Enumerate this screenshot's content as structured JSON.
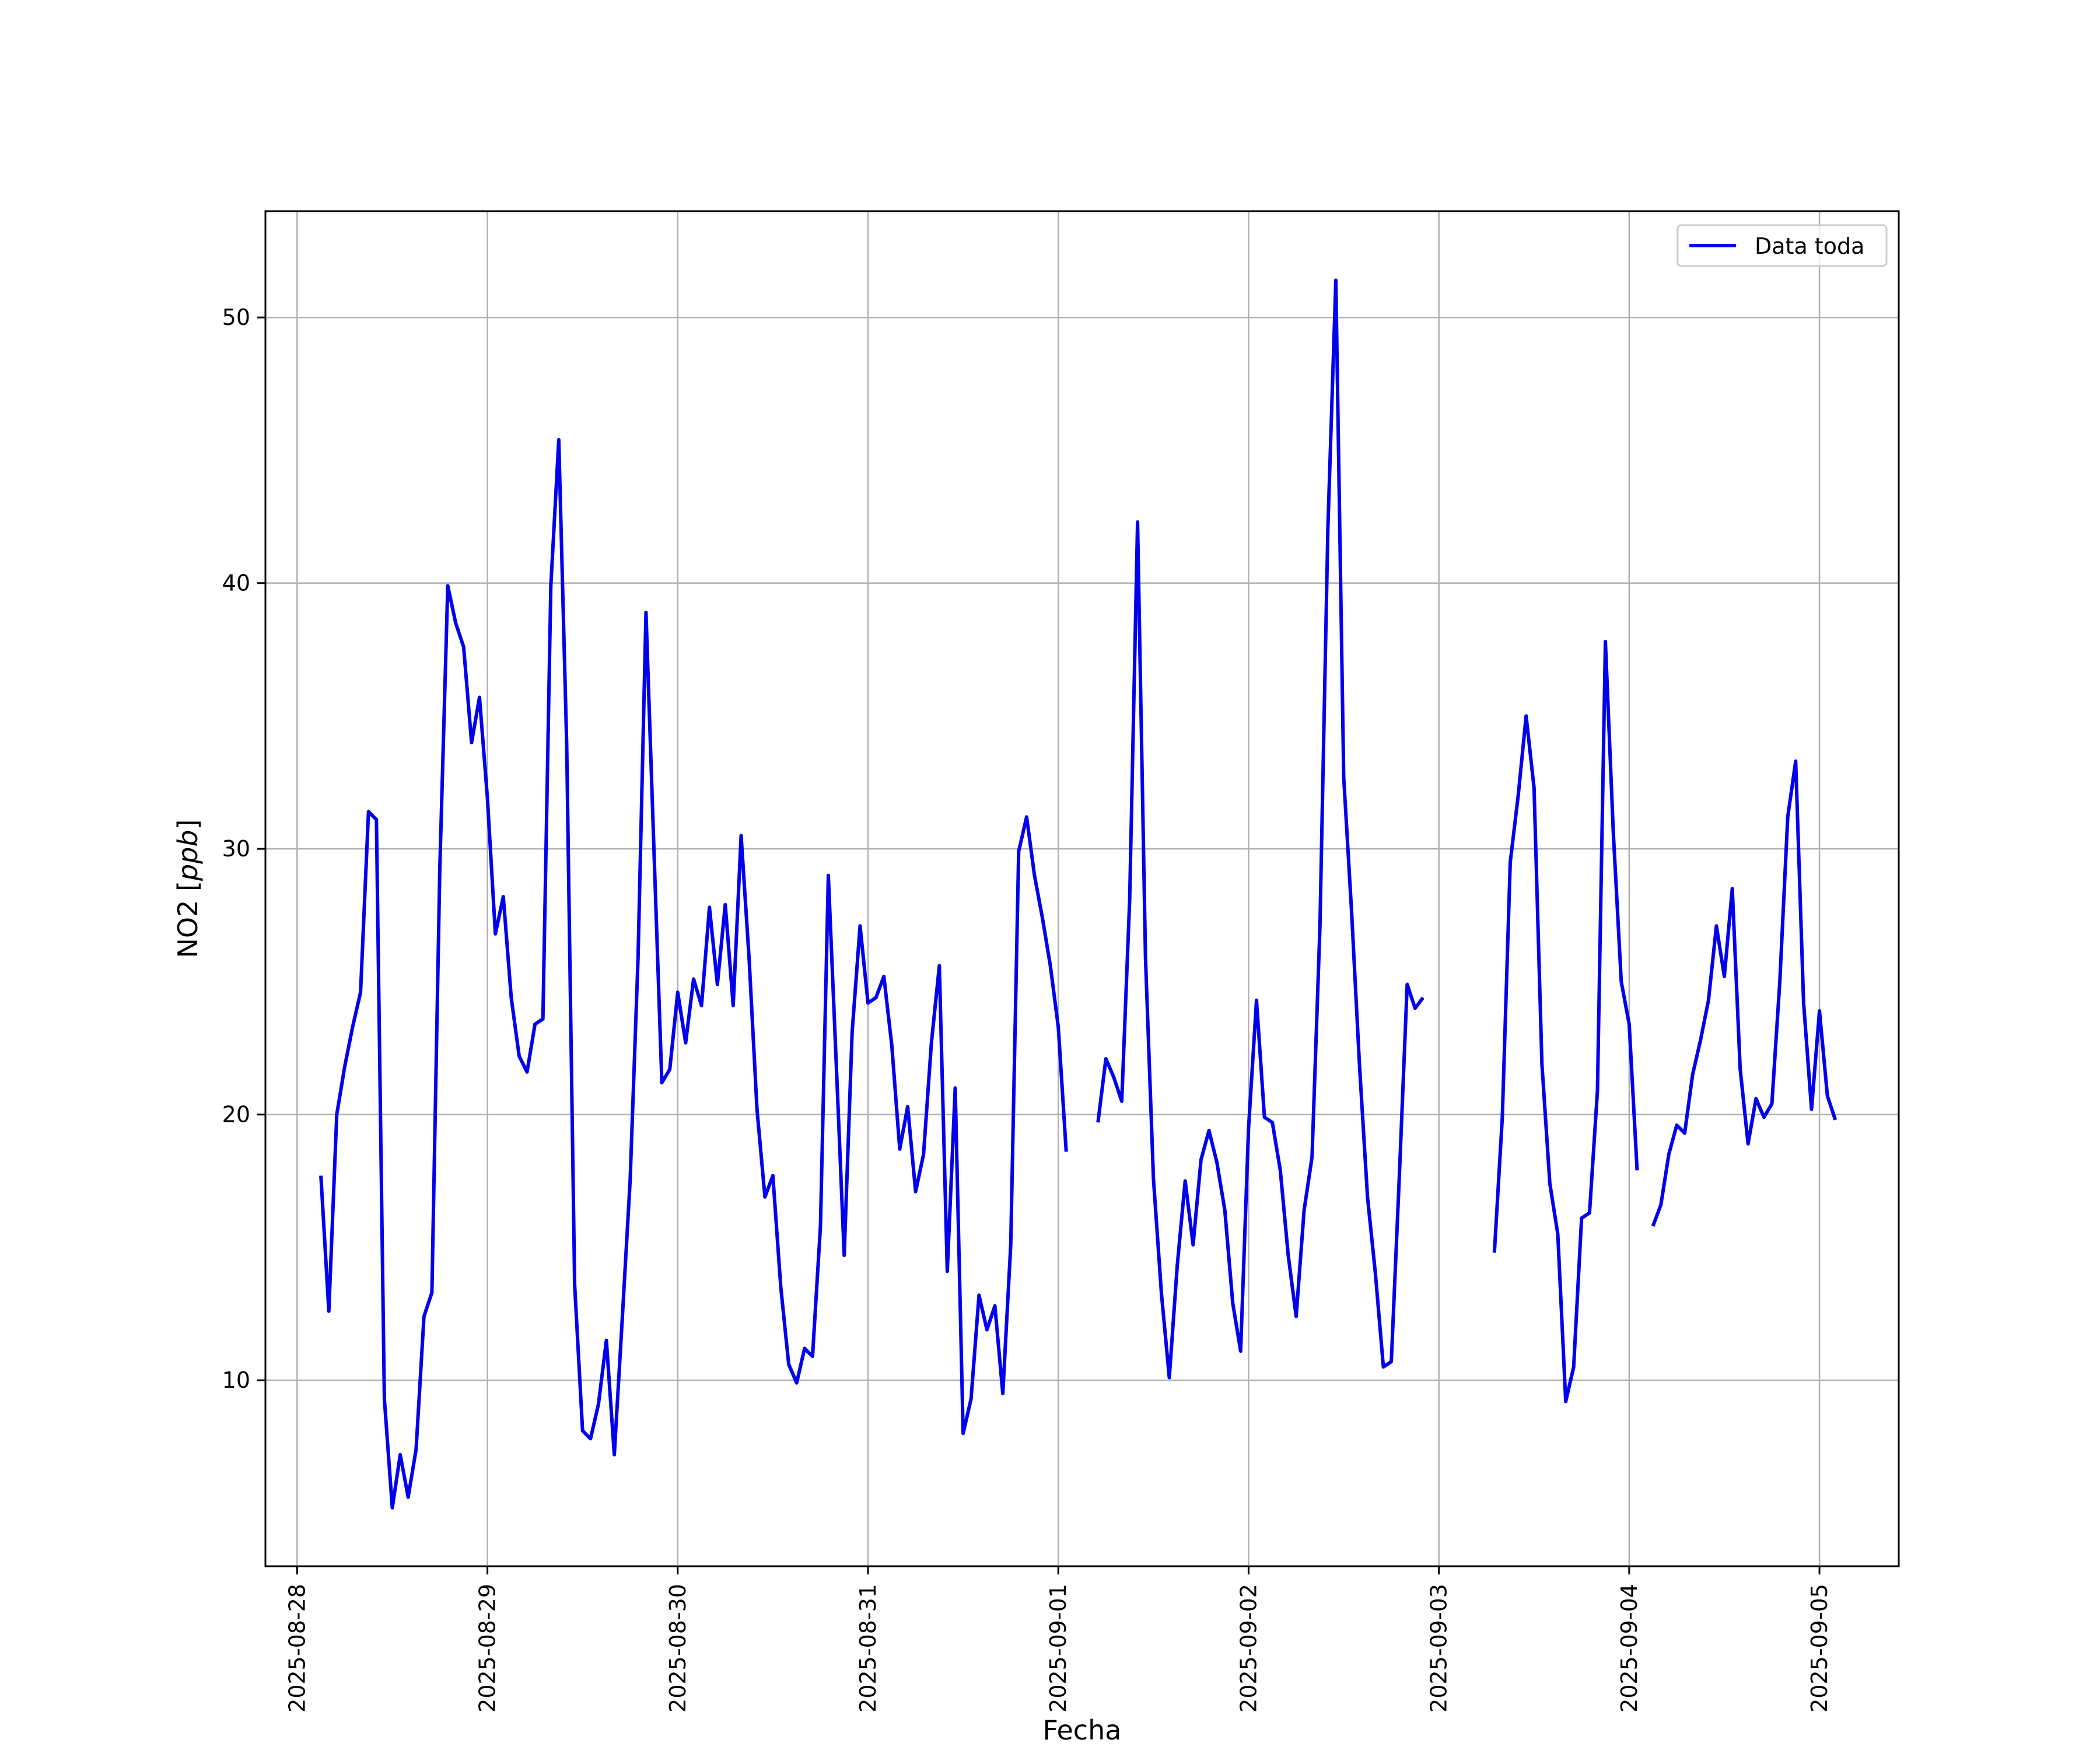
{
  "chart_data": {
    "type": "line",
    "xlabel": "Fecha",
    "ylabel": "NO2 [",
    "ylabel_unit": "ppb",
    "ylabel_suffix": "]",
    "x_range": [
      "2025-08-27T20:00",
      "2025-09-05T10:00"
    ],
    "ylim": [
      3.0,
      54.0
    ],
    "x_tick_labels": [
      "2025-08-28",
      "2025-08-29",
      "2025-08-30",
      "2025-08-31",
      "2025-09-01",
      "2025-09-02",
      "2025-09-03",
      "2025-09-04",
      "2025-09-05"
    ],
    "y_ticks": [
      10,
      20,
      30,
      40,
      50
    ],
    "grid": true,
    "legend_position": "top-right",
    "series": [
      {
        "name": "Data toda",
        "color": "#0000ee",
        "x_start": "2025-08-28T03:00",
        "x_step_hours": 1,
        "values": [
          17.7,
          12.6,
          20.0,
          21.8,
          23.3,
          24.6,
          31.4,
          31.1,
          9.3,
          5.2,
          7.2,
          5.6,
          7.4,
          12.4,
          13.3,
          29.3,
          39.9,
          38.5,
          37.6,
          34.0,
          35.7,
          31.9,
          26.8,
          28.2,
          24.4,
          22.2,
          21.6,
          23.4,
          23.6,
          39.9,
          45.4,
          33.9,
          13.6,
          8.1,
          7.8,
          9.1,
          11.5,
          7.2,
          12.3,
          17.5,
          25.9,
          38.9,
          30.0,
          21.2,
          21.7,
          24.6,
          22.7,
          25.1,
          24.1,
          27.8,
          24.9,
          27.9,
          24.1,
          30.5,
          25.9,
          20.2,
          16.9,
          17.7,
          13.5,
          10.6,
          9.9,
          11.2,
          10.9,
          15.8,
          29.0,
          21.9,
          14.7,
          23.1,
          27.1,
          24.2,
          24.4,
          25.2,
          22.6,
          18.7,
          20.3,
          17.1,
          18.5,
          22.7,
          25.6,
          14.1,
          21.0,
          8.0,
          9.3,
          13.2,
          11.9,
          12.8,
          9.5,
          15.1,
          29.9,
          31.2,
          29.0,
          27.4,
          25.6,
          23.3,
          18.6,
          null,
          null,
          null,
          19.7,
          22.1,
          21.4,
          20.5,
          28.1,
          42.3,
          25.9,
          17.6,
          13.3,
          10.1,
          14.3,
          17.5,
          15.1,
          18.3,
          19.4,
          18.2,
          16.4,
          12.9,
          11.1,
          19.5,
          24.3,
          19.9,
          19.7,
          17.9,
          14.7,
          12.4,
          16.4,
          18.4,
          27.1,
          42.1,
          51.4,
          32.7,
          27.6,
          21.8,
          16.9,
          14.0,
          10.5,
          10.7,
          17.6,
          24.9,
          24.0,
          24.4,
          null,
          null,
          null,
          null,
          null,
          null,
          null,
          null,
          14.8,
          19.9,
          29.5,
          32.0,
          35.0,
          32.3,
          21.9,
          17.4,
          15.5,
          9.2,
          10.5,
          16.1,
          16.3,
          20.9,
          37.8,
          30.6,
          25.0,
          23.4,
          17.9,
          null,
          15.8,
          16.6,
          18.5,
          19.6,
          19.3,
          21.5,
          22.8,
          24.3,
          27.1,
          25.2,
          28.5,
          21.7,
          18.9,
          20.6,
          19.9,
          20.4,
          25.0,
          31.2,
          33.3,
          24.2,
          20.2,
          23.9,
          20.7,
          19.8
        ]
      }
    ]
  }
}
